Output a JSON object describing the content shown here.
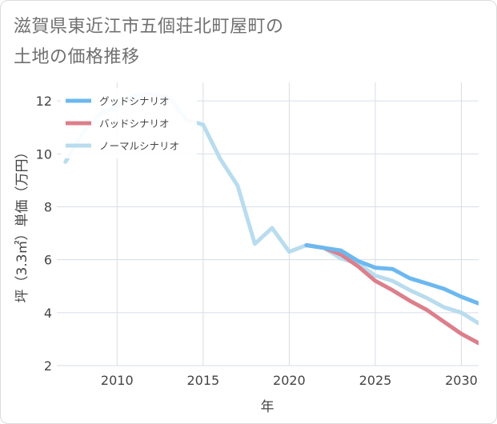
{
  "title_line1": "滋賀県東近江市五個荘北町屋町の",
  "title_line2": "土地の価格推移",
  "chart_data": {
    "type": "line",
    "xlabel": "年",
    "ylabel": "坪（3.3㎡）単価（万円）",
    "xlim": [
      2006.5,
      2031
    ],
    "ylim": [
      2,
      12.7
    ],
    "x_ticks": [
      2010,
      2015,
      2020,
      2025,
      2030
    ],
    "y_ticks": [
      2,
      4,
      6,
      8,
      10,
      12
    ],
    "grid": true,
    "legend_position": "top-left",
    "series": [
      {
        "name": "グッドシナリオ",
        "color": "#6cb8ef",
        "x": [
          2021,
          2022,
          2023,
          2024,
          2025,
          2026,
          2027,
          2028,
          2029,
          2030,
          2031
        ],
        "values": [
          6.55,
          6.45,
          6.35,
          5.95,
          5.7,
          5.65,
          5.3,
          5.1,
          4.9,
          4.6,
          4.35
        ]
      },
      {
        "name": "バッドシナリオ",
        "color": "#dc7f8b",
        "x": [
          2021,
          2022,
          2023,
          2024,
          2025,
          2026,
          2027,
          2028,
          2029,
          2030,
          2031
        ],
        "values": [
          6.55,
          6.45,
          6.2,
          5.75,
          5.2,
          4.85,
          4.45,
          4.1,
          3.65,
          3.2,
          2.85
        ]
      },
      {
        "name": "ノーマルシナリオ",
        "color": "#b9dcee",
        "x": [
          2007,
          2008,
          2009,
          2010,
          2011,
          2012,
          2013,
          2014,
          2015,
          2016,
          2017,
          2018,
          2019,
          2020,
          2021,
          2022,
          2023,
          2024,
          2025,
          2026,
          2027,
          2028,
          2029,
          2030,
          2031
        ],
        "values": [
          9.7,
          10.8,
          11.5,
          11.8,
          12.2,
          12.25,
          12.15,
          11.3,
          11.1,
          9.8,
          8.8,
          6.6,
          7.2,
          6.3,
          6.55,
          6.45,
          6.05,
          5.85,
          5.4,
          5.2,
          4.85,
          4.55,
          4.2,
          4.0,
          3.6
        ]
      }
    ]
  }
}
